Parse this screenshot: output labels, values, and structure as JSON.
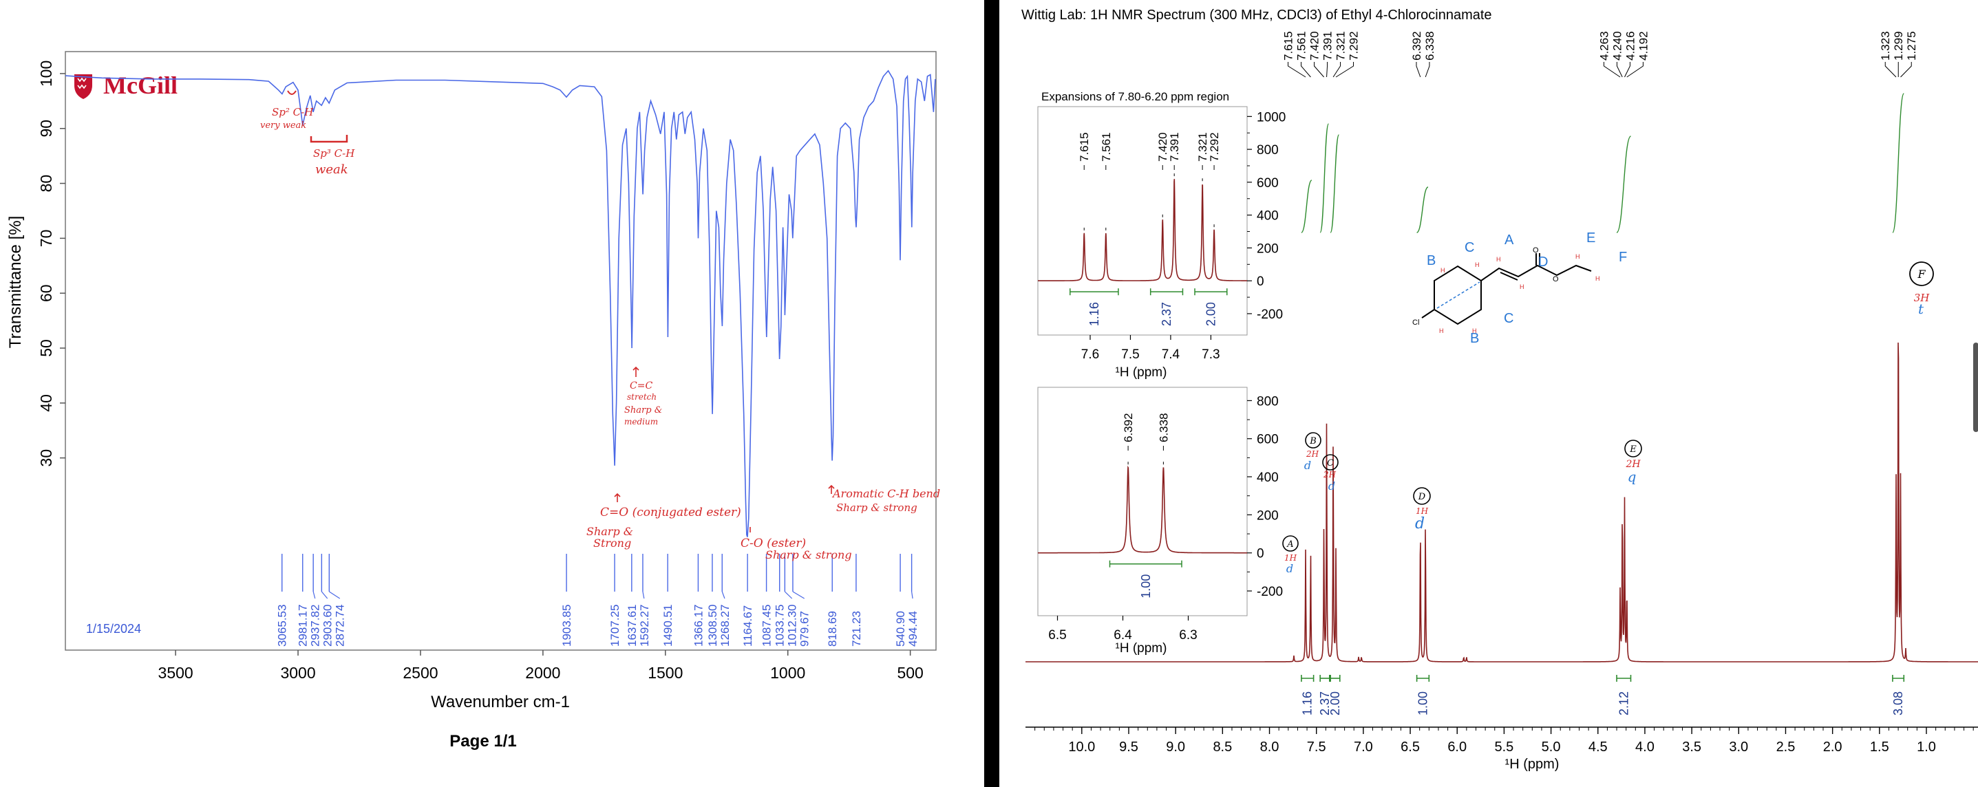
{
  "colors": {
    "ir_trace": "#4a68e6",
    "ir_peak_label": "#3a58d6",
    "nmr_trace": "#8a1f1f",
    "integration": "#2e8b2e",
    "integral_value": "#1f3a8f",
    "annotation_red": "#d42a2a",
    "annotation_blue": "#2a78d4",
    "mcgill_red": "#c4122f",
    "divider": "#000000"
  },
  "ir": {
    "logo_text": "McGill",
    "date": "1/15/2024",
    "footer": "Page 1/1",
    "chart_data": {
      "type": "line",
      "xlabel": "Wavenumber cm-1",
      "ylabel": "Transmittance [%]",
      "xlim": [
        3950,
        395
      ],
      "ylim": [
        -5,
        104
      ],
      "x_reversed": true,
      "x_ticks": [
        3500,
        3000,
        2500,
        2000,
        1500,
        1000,
        500
      ],
      "y_ticks": [
        30,
        40,
        50,
        60,
        70,
        80,
        90,
        100
      ],
      "series": [
        {
          "points": [
            [
              3950,
              99.6
            ],
            [
              3800,
              99.2
            ],
            [
              3600,
              99.0
            ],
            [
              3400,
              99.0
            ],
            [
              3200,
              98.9
            ],
            [
              3120,
              98.6
            ],
            [
              3080,
              97.0
            ],
            [
              3065,
              96.3
            ],
            [
              3050,
              97.6
            ],
            [
              3020,
              98.4
            ],
            [
              3000,
              97.0
            ],
            [
              2981,
              90.6
            ],
            [
              2965,
              93.8
            ],
            [
              2950,
              96.0
            ],
            [
              2938,
              93.0
            ],
            [
              2925,
              95.0
            ],
            [
              2904,
              94.2
            ],
            [
              2888,
              95.6
            ],
            [
              2873,
              94.6
            ],
            [
              2850,
              97.0
            ],
            [
              2800,
              98.3
            ],
            [
              2600,
              98.8
            ],
            [
              2400,
              98.8
            ],
            [
              2200,
              98.5
            ],
            [
              2000,
              98.2
            ],
            [
              1960,
              97.6
            ],
            [
              1930,
              97.0
            ],
            [
              1904,
              95.7
            ],
            [
              1880,
              97.0
            ],
            [
              1850,
              97.8
            ],
            [
              1790,
              97.6
            ],
            [
              1760,
              95.8
            ],
            [
              1740,
              86.0
            ],
            [
              1725,
              60.0
            ],
            [
              1715,
              38.0
            ],
            [
              1707,
              28.6
            ],
            [
              1700,
              40.0
            ],
            [
              1690,
              70.0
            ],
            [
              1675,
              87.0
            ],
            [
              1660,
              90.0
            ],
            [
              1650,
              80.0
            ],
            [
              1640,
              58.0
            ],
            [
              1637,
              50.0
            ],
            [
              1628,
              74.0
            ],
            [
              1615,
              90.0
            ],
            [
              1605,
              93.0
            ],
            [
              1598,
              85.0
            ],
            [
              1592,
              78.0
            ],
            [
              1585,
              86.0
            ],
            [
              1575,
              92.0
            ],
            [
              1560,
              95.0
            ],
            [
              1540,
              92.5
            ],
            [
              1520,
              89.0
            ],
            [
              1505,
              93.0
            ],
            [
              1495,
              78.0
            ],
            [
              1490,
              52.0
            ],
            [
              1484,
              78.0
            ],
            [
              1475,
              90.0
            ],
            [
              1465,
              93.0
            ],
            [
              1455,
              88.0
            ],
            [
              1445,
              92.5
            ],
            [
              1430,
              93.0
            ],
            [
              1420,
              89.0
            ],
            [
              1410,
              92.0
            ],
            [
              1395,
              93.0
            ],
            [
              1380,
              88.0
            ],
            [
              1370,
              80.0
            ],
            [
              1366,
              70.0
            ],
            [
              1360,
              82.0
            ],
            [
              1345,
              90.0
            ],
            [
              1330,
              86.0
            ],
            [
              1320,
              68.0
            ],
            [
              1312,
              46.0
            ],
            [
              1308,
              38.0
            ],
            [
              1302,
              52.0
            ],
            [
              1292,
              75.0
            ],
            [
              1282,
              72.0
            ],
            [
              1275,
              60.0
            ],
            [
              1268,
              54.0
            ],
            [
              1262,
              66.0
            ],
            [
              1250,
              80.0
            ],
            [
              1235,
              88.0
            ],
            [
              1222,
              86.0
            ],
            [
              1210,
              76.0
            ],
            [
              1195,
              60.0
            ],
            [
              1180,
              38.0
            ],
            [
              1172,
              22.0
            ],
            [
              1168,
              16.0
            ],
            [
              1165,
              15.6
            ],
            [
              1160,
              19.0
            ],
            [
              1150,
              40.0
            ],
            [
              1138,
              68.0
            ],
            [
              1125,
              82.0
            ],
            [
              1112,
              85.0
            ],
            [
              1100,
              75.0
            ],
            [
              1092,
              60.0
            ],
            [
              1087,
              52.0
            ],
            [
              1082,
              60.0
            ],
            [
              1072,
              77.0
            ],
            [
              1062,
              83.0
            ],
            [
              1048,
              75.0
            ],
            [
              1040,
              60.0
            ],
            [
              1034,
              48.0
            ],
            [
              1028,
              54.0
            ],
            [
              1020,
              72.0
            ],
            [
              1015,
              64.0
            ],
            [
              1012,
              56.0
            ],
            [
              1006,
              64.0
            ],
            [
              995,
              78.0
            ],
            [
              985,
              75.0
            ],
            [
              980,
              70.0
            ],
            [
              974,
              76.0
            ],
            [
              965,
              85.0
            ],
            [
              950,
              86.0
            ],
            [
              930,
              87.0
            ],
            [
              910,
              88.0
            ],
            [
              890,
              89.0
            ],
            [
              870,
              87.0
            ],
            [
              855,
              80.0
            ],
            [
              840,
              70.0
            ],
            [
              830,
              50.0
            ],
            [
              822,
              34.0
            ],
            [
              819,
              29.5
            ],
            [
              815,
              34.0
            ],
            [
              808,
              58.0
            ],
            [
              798,
              85.0
            ],
            [
              785,
              90.0
            ],
            [
              765,
              91.0
            ],
            [
              745,
              90.0
            ],
            [
              730,
              82.0
            ],
            [
              724,
              74.0
            ],
            [
              721,
              72.0
            ],
            [
              717,
              76.0
            ],
            [
              708,
              88.0
            ],
            [
              690,
              92.0
            ],
            [
              670,
              94.0
            ],
            [
              650,
              95.0
            ],
            [
              630,
              97.5
            ],
            [
              610,
              99.5
            ],
            [
              590,
              100.5
            ],
            [
              570,
              99.0
            ],
            [
              555,
              94.0
            ],
            [
              546,
              80.0
            ],
            [
              541,
              66.0
            ],
            [
              536,
              80.0
            ],
            [
              528,
              95.0
            ],
            [
              520,
              99.0
            ],
            [
              512,
              99.5
            ],
            [
              505,
              92.0
            ],
            [
              498,
              82.0
            ],
            [
              494,
              72.0
            ],
            [
              490,
              82.0
            ],
            [
              480,
              95.0
            ],
            [
              470,
              99.0
            ],
            [
              455,
              98.5
            ],
            [
              442,
              95.0
            ],
            [
              430,
              99.5
            ],
            [
              418,
              99.8
            ],
            [
              405,
              93.0
            ],
            [
              398,
              99.0
            ]
          ]
        }
      ],
      "peak_labels": [
        "3065.53",
        "2981.17",
        "2937.82",
        "2903.60",
        "2872.74",
        "1903.85",
        "1707.25",
        "1637.61",
        "1592.27",
        "1490.51",
        "1366.17",
        "1308.50",
        "1268.27",
        "1164.67",
        "1087.45",
        "1033.75",
        "1012.30",
        "979.67",
        "818.69",
        "721.23",
        "540.90",
        "494.44"
      ],
      "peak_positions": [
        3065.53,
        2981.17,
        2937.82,
        2903.6,
        2872.74,
        1903.85,
        1707.25,
        1637.61,
        1592.27,
        1490.51,
        1366.17,
        1308.5,
        1268.27,
        1164.67,
        1087.45,
        1033.75,
        1012.3,
        979.67,
        818.69,
        721.23,
        540.9,
        494.44
      ]
    },
    "annotations": {
      "sp2_ch": "Sp² C-H",
      "sp2_strength": "very weak",
      "sp3_ch": "Sp³ C-H",
      "sp3_strength": "weak",
      "cc_line1": "C=C",
      "cc_line2": "stretch",
      "cc_line3": "Sharp &",
      "cc_line4": "medium",
      "co_ester": "C=O (conjugated ester)",
      "co_strength_1": "Sharp &",
      "co_strength_2": "Strong",
      "c_o_single": "C-O (ester)",
      "c_o_strength": "Sharp & strong",
      "aromatic_1": "Aromatic C-H bend",
      "aromatic_2": "Sharp & strong"
    }
  },
  "nmr": {
    "title": "Wittig Lab: 1H NMR Spectrum (300 MHz, CDCl3) of Ethyl 4-Chlorocinnamate",
    "chart_data": {
      "type": "line",
      "xlabel": "¹H (ppm)",
      "xlim": [
        10.6,
        0.45
      ],
      "x_reversed": true,
      "x_ticks": [
        10.0,
        9.5,
        9.0,
        8.5,
        8.0,
        7.5,
        7.0,
        6.5,
        6.0,
        5.5,
        5.0,
        4.5,
        4.0,
        3.5,
        3.0,
        2.5,
        2.0,
        1.5,
        1.0
      ],
      "x_tick_labels": [
        "10.0",
        "9.5",
        "9.0",
        "8.5",
        "8.0",
        "7.5",
        "7.0",
        "6.5",
        "6.0",
        "5.5",
        "5.0",
        "4.5",
        "4.0",
        "3.5",
        "3.0",
        "2.5",
        "2.0",
        "1.5",
        "1.0"
      ],
      "peaks": [
        {
          "ppm": 7.615,
          "height": 0.28
        },
        {
          "ppm": 7.561,
          "height": 0.28
        },
        {
          "ppm": 7.42,
          "height": 0.34
        },
        {
          "ppm": 7.391,
          "height": 0.6
        },
        {
          "ppm": 7.321,
          "height": 0.56
        },
        {
          "ppm": 7.292,
          "height": 0.28
        },
        {
          "ppm": 6.392,
          "height": 0.36
        },
        {
          "ppm": 6.338,
          "height": 0.36
        },
        {
          "ppm": 4.263,
          "height": 0.18
        },
        {
          "ppm": 4.24,
          "height": 0.4
        },
        {
          "ppm": 4.216,
          "height": 0.4
        },
        {
          "ppm": 4.192,
          "height": 0.18
        },
        {
          "ppm": 1.323,
          "height": 0.45
        },
        {
          "ppm": 1.299,
          "height": 0.97
        },
        {
          "ppm": 1.275,
          "height": 0.45
        }
      ],
      "peak_labels": [
        "7.615",
        "7.561",
        "7.420",
        "7.391",
        "7.321",
        "7.292",
        "6.392",
        "6.338",
        "4.263",
        "4.240",
        "4.216",
        "4.192",
        "1.323",
        "1.299",
        "1.275"
      ],
      "integrals": [
        {
          "from": 7.66,
          "to": 7.53,
          "value": "1.16"
        },
        {
          "from": 7.46,
          "to": 7.36,
          "value": "2.37"
        },
        {
          "from": 7.35,
          "to": 7.25,
          "value": "2.00"
        },
        {
          "from": 6.43,
          "to": 6.3,
          "value": "1.00"
        },
        {
          "from": 4.3,
          "to": 4.15,
          "value": "2.12"
        },
        {
          "from": 1.36,
          "to": 1.24,
          "value": "3.08"
        }
      ]
    },
    "inset1": {
      "title": "Expansions of 7.80-6.20 ppm region",
      "xlabel": "¹H (ppm)",
      "xlim": [
        7.73,
        7.21
      ],
      "x_ticks": [
        7.6,
        7.5,
        7.4,
        7.3
      ],
      "x_tick_labels": [
        "7.6",
        "7.5",
        "7.4",
        "7.3"
      ],
      "y_ticks": [
        -200,
        0,
        200,
        400,
        600,
        800,
        1000
      ],
      "y_tick_labels": [
        "-200",
        "0",
        "200",
        "400",
        "600",
        "800",
        "1000"
      ],
      "ylim": [
        -330,
        1060
      ],
      "peaks": [
        {
          "ppm": 7.615,
          "value": 290
        },
        {
          "ppm": 7.561,
          "value": 290
        },
        {
          "ppm": 7.42,
          "value": 370
        },
        {
          "ppm": 7.391,
          "value": 620
        },
        {
          "ppm": 7.321,
          "value": 590
        },
        {
          "ppm": 7.292,
          "value": 310
        }
      ],
      "peak_labels": [
        "7.615",
        "7.561",
        "7.420",
        "7.391",
        "7.321",
        "7.292"
      ],
      "integrals": [
        {
          "from": 7.65,
          "to": 7.53,
          "value": "1.16"
        },
        {
          "from": 7.45,
          "to": 7.37,
          "value": "2.37"
        },
        {
          "from": 7.34,
          "to": 7.26,
          "value": "2.00"
        }
      ]
    },
    "inset2": {
      "xlabel": "¹H (ppm)",
      "xlim": [
        6.53,
        6.21
      ],
      "x_ticks": [
        6.5,
        6.4,
        6.3
      ],
      "x_tick_labels": [
        "6.5",
        "6.4",
        "6.3"
      ],
      "y_ticks": [
        -200,
        0,
        200,
        400,
        600,
        800
      ],
      "y_tick_labels": [
        "-200",
        "0",
        "200",
        "400",
        "600",
        "800"
      ],
      "ylim": [
        -330,
        870
      ],
      "peaks": [
        {
          "ppm": 6.392,
          "value": 450
        },
        {
          "ppm": 6.338,
          "value": 450
        }
      ],
      "peak_labels": [
        "6.392",
        "6.338"
      ],
      "integrals": [
        {
          "from": 6.42,
          "to": 6.31,
          "value": "1.00"
        }
      ]
    },
    "assignments": {
      "A": {
        "letter": "A",
        "count": "1H",
        "mult": "d"
      },
      "B": {
        "letter": "B",
        "count": "2H",
        "mult": "d"
      },
      "C": {
        "letter": "C",
        "count": "2H",
        "mult": "d"
      },
      "D": {
        "letter": "D",
        "count": "1H",
        "mult": "d"
      },
      "E": {
        "letter": "E",
        "count": "2H",
        "mult": "q"
      },
      "F": {
        "letter": "F",
        "count": "3H",
        "mult": "t"
      }
    },
    "structure_labels": {
      "A": "A",
      "B_top": "B",
      "B_bottom": "B",
      "C_top": "C",
      "C_bottom": "C",
      "D": "D",
      "E": "E",
      "F": "F",
      "Cl": "Cl",
      "O_carbonyl": "O",
      "O_ester": "O"
    }
  }
}
